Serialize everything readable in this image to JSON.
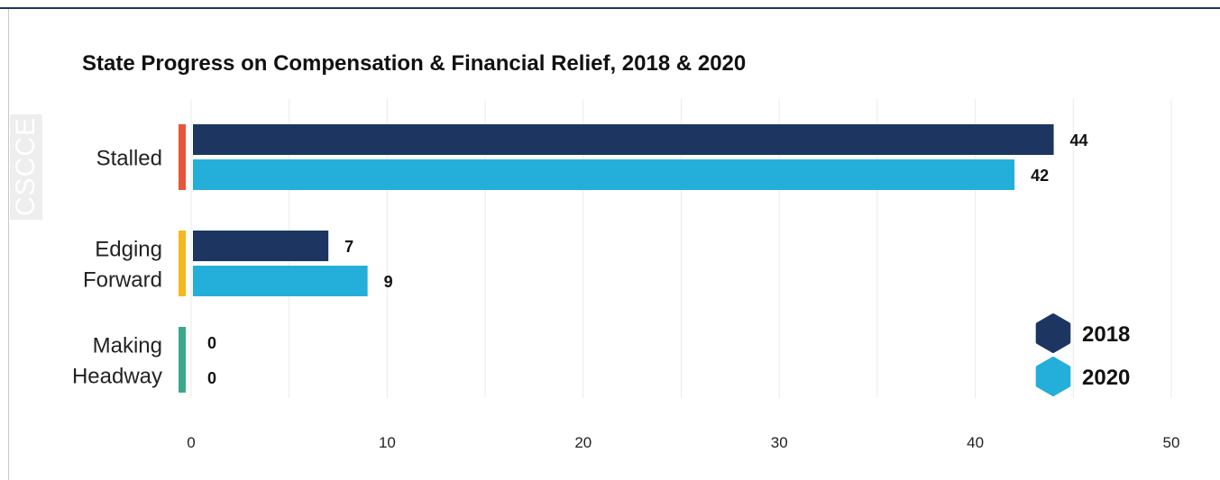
{
  "watermark": "CSCCE",
  "chart_data": {
    "type": "bar",
    "orientation": "horizontal",
    "title": "State Progress on Compensation & Financial Relief, 2018 & 2020",
    "categories": [
      {
        "lines": [
          "Stalled"
        ],
        "indicator_color": "#e8553a"
      },
      {
        "lines": [
          "Edging",
          "Forward"
        ],
        "indicator_color": "#f7b81e"
      },
      {
        "lines": [
          "Making",
          "Headway"
        ],
        "indicator_color": "#3aa88c"
      }
    ],
    "series": [
      {
        "name": "2018",
        "color": "#1c3661",
        "values": [
          44,
          7,
          0
        ]
      },
      {
        "name": "2020",
        "color": "#23afd9",
        "values": [
          42,
          9,
          0
        ]
      }
    ],
    "xlim": [
      0,
      50
    ],
    "xticks": [
      0,
      10,
      20,
      30,
      40,
      50
    ],
    "grid": true,
    "legend_position": "bottom-right",
    "data_labels": true
  }
}
